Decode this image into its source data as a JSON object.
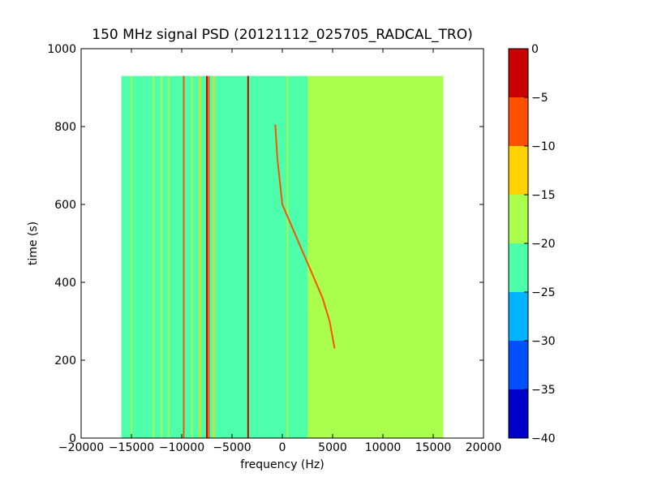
{
  "chart_data": {
    "type": "heatmap",
    "title": "150 MHz signal PSD (20121112_025705_RADCAL_TRO)",
    "xlabel": "frequency (Hz)",
    "ylabel": "time (s)",
    "xlim": [
      -20000,
      20000
    ],
    "ylim": [
      0,
      1000
    ],
    "x_ticks": [
      -20000,
      -15000,
      -10000,
      -5000,
      0,
      5000,
      10000,
      15000,
      20000
    ],
    "x_tick_labels": [
      "−20000",
      "−15000",
      "−10000",
      "−5000",
      "0",
      "5000",
      "10000",
      "15000",
      "20000"
    ],
    "y_ticks": [
      0,
      200,
      400,
      600,
      800,
      1000
    ],
    "y_tick_labels": [
      "0",
      "200",
      "400",
      "600",
      "800",
      "1000"
    ],
    "data_extent": {
      "x": [
        -16000,
        16000
      ],
      "y": [
        0,
        930
      ]
    },
    "background_level_bands": [
      {
        "x": [
          -16000,
          2500
        ],
        "level": -22.5
      },
      {
        "x": [
          2500,
          16000
        ],
        "level": -17.5
      }
    ],
    "narrowband_lines": [
      {
        "x": -15000,
        "y": [
          0,
          930
        ],
        "level": -17.5
      },
      {
        "x": -12800,
        "y": [
          0,
          930
        ],
        "level": -17.5
      },
      {
        "x": -12000,
        "y": [
          0,
          930
        ],
        "level": -15
      },
      {
        "x": -11300,
        "y": [
          0,
          930
        ],
        "level": -17.5
      },
      {
        "x": -9800,
        "y": [
          0,
          930
        ],
        "level": -5
      },
      {
        "x": -9000,
        "y": [
          0,
          930
        ],
        "level": -17.5
      },
      {
        "x": -8200,
        "y": [
          0,
          930
        ],
        "level": -10
      },
      {
        "x": -7500,
        "y": [
          0,
          930
        ],
        "level": -2.5
      },
      {
        "x": -7300,
        "y": [
          0,
          930
        ],
        "level": -7.5
      },
      {
        "x": -6800,
        "y": [
          0,
          930
        ],
        "level": -12.5
      },
      {
        "x": -3400,
        "y": [
          0,
          930
        ],
        "level": -2.5
      },
      {
        "x": 500,
        "y": [
          0,
          930
        ],
        "level": -17.5
      }
    ],
    "drifting_signal": {
      "points": [
        [
          -700,
          805
        ],
        [
          -500,
          720
        ],
        [
          0,
          600
        ],
        [
          1000,
          540
        ],
        [
          2000,
          480
        ],
        [
          3000,
          420
        ],
        [
          4000,
          360
        ],
        [
          4700,
          300
        ],
        [
          5200,
          230
        ]
      ],
      "level": -5
    },
    "colorbar": {
      "levels": [
        -40,
        -35,
        -30,
        -25,
        -20,
        -15,
        -10,
        -5,
        0
      ],
      "tick_labels": [
        "−40",
        "−35",
        "−30",
        "−25",
        "−20",
        "−15",
        "−10",
        "−5",
        "0"
      ],
      "colors": [
        "#0000c8",
        "#0050ff",
        "#00b4ff",
        "#4dffaa",
        "#aaff4d",
        "#ffd200",
        "#ff5000",
        "#c80000"
      ]
    }
  }
}
